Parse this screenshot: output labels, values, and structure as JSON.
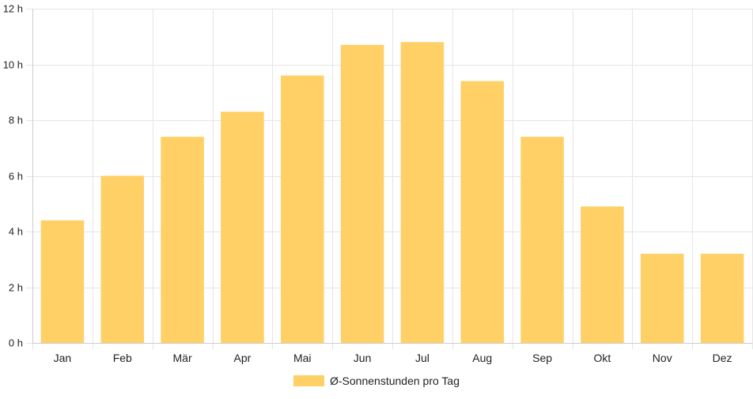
{
  "colors": {
    "bar_fill": "#FED066",
    "grid": "#E5E5E5",
    "axis": "#CCCCCC",
    "text": "#222222"
  },
  "chart_data": {
    "type": "bar",
    "categories": [
      "Jan",
      "Feb",
      "Mär",
      "Apr",
      "Mai",
      "Jun",
      "Jul",
      "Aug",
      "Sep",
      "Okt",
      "Nov",
      "Dez"
    ],
    "series": [
      {
        "name": "Ø-Sonnenstunden pro Tag",
        "values": [
          4.4,
          6.0,
          7.4,
          8.3,
          9.6,
          10.7,
          10.8,
          9.4,
          7.4,
          4.9,
          3.2,
          3.2
        ]
      }
    ],
    "y_ticks": [
      "0 h",
      "2 h",
      "4 h",
      "6 h",
      "8 h",
      "10 h",
      "12 h"
    ],
    "y_tick_values": [
      0,
      2,
      4,
      6,
      8,
      10,
      12
    ],
    "ylim": [
      0,
      12
    ],
    "grid": true,
    "legend_position": "bottom-center"
  }
}
